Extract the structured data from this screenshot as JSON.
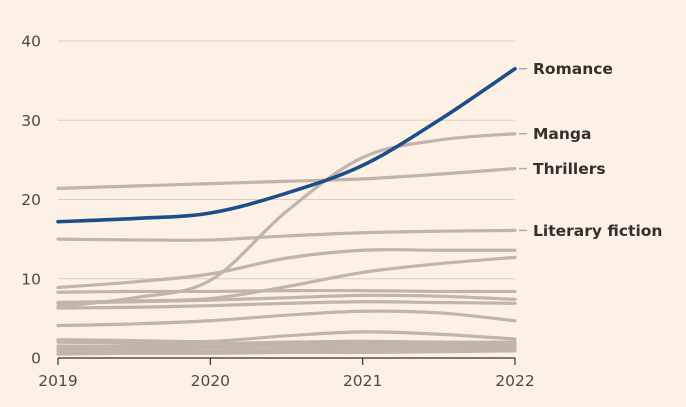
{
  "chart_data": {
    "type": "line",
    "title": "",
    "xlabel": "",
    "ylabel": "",
    "xlim": [
      2019,
      2022
    ],
    "ylim": [
      0,
      40
    ],
    "x_ticks": [
      2019,
      2020,
      2021,
      2022
    ],
    "x_tick_labels": [
      "2019",
      "2020",
      "2021",
      "2022"
    ],
    "y_ticks": [
      0,
      10,
      20,
      30,
      40
    ],
    "y_tick_labels": [
      "0",
      "10",
      "20",
      "30",
      "40"
    ],
    "grid": true,
    "x": [
      2019,
      2019.5,
      2020,
      2020.5,
      2021,
      2021.5,
      2022
    ],
    "series": [
      {
        "name": "Romance",
        "labeled": true,
        "highlight": true,
        "values": [
          17.2,
          17.6,
          18.3,
          20.8,
          24.3,
          30.0,
          36.5
        ]
      },
      {
        "name": "Manga",
        "labeled": true,
        "highlight": false,
        "values": [
          6.5,
          7.6,
          9.8,
          18.5,
          25.3,
          27.5,
          28.3
        ]
      },
      {
        "name": "Thrillers",
        "labeled": true,
        "highlight": false,
        "values": [
          21.4,
          21.7,
          22.0,
          22.3,
          22.6,
          23.2,
          23.9
        ]
      },
      {
        "name": "Literary fiction",
        "labeled": true,
        "highlight": false,
        "values": [
          15.0,
          14.9,
          14.9,
          15.4,
          15.8,
          16.0,
          16.1
        ]
      },
      {
        "name": "",
        "labeled": false,
        "highlight": false,
        "values": [
          8.9,
          9.6,
          10.6,
          12.6,
          13.6,
          13.6,
          13.6
        ]
      },
      {
        "name": "",
        "labeled": false,
        "highlight": false,
        "values": [
          7.0,
          7.2,
          7.5,
          9.0,
          10.8,
          11.9,
          12.7
        ]
      },
      {
        "name": "",
        "labeled": false,
        "highlight": false,
        "values": [
          8.3,
          8.4,
          8.4,
          8.5,
          8.5,
          8.4,
          8.4
        ]
      },
      {
        "name": "",
        "labeled": false,
        "highlight": false,
        "values": [
          6.9,
          7.1,
          7.3,
          7.6,
          7.9,
          7.8,
          7.4
        ]
      },
      {
        "name": "",
        "labeled": false,
        "highlight": false,
        "values": [
          6.3,
          6.4,
          6.6,
          6.9,
          7.1,
          7.0,
          6.9
        ]
      },
      {
        "name": "",
        "labeled": false,
        "highlight": false,
        "values": [
          4.1,
          4.3,
          4.7,
          5.4,
          5.9,
          5.7,
          4.7
        ]
      },
      {
        "name": "",
        "labeled": false,
        "highlight": false,
        "values": [
          2.3,
          2.2,
          2.1,
          2.8,
          3.3,
          3.0,
          2.4
        ]
      },
      {
        "name": "",
        "labeled": false,
        "highlight": false,
        "values": [
          2.0,
          1.9,
          1.8,
          2.0,
          2.1,
          2.0,
          2.0
        ]
      },
      {
        "name": "",
        "labeled": false,
        "highlight": false,
        "values": [
          1.5,
          1.5,
          1.6,
          1.7,
          1.8,
          1.7,
          1.8
        ]
      },
      {
        "name": "",
        "labeled": false,
        "highlight": false,
        "values": [
          1.2,
          1.2,
          1.3,
          1.4,
          1.5,
          1.5,
          1.5
        ]
      },
      {
        "name": "",
        "labeled": false,
        "highlight": false,
        "values": [
          0.8,
          0.9,
          0.9,
          1.0,
          1.1,
          1.1,
          1.2
        ]
      },
      {
        "name": "",
        "labeled": false,
        "highlight": false,
        "values": [
          0.5,
          0.6,
          0.6,
          0.7,
          0.7,
          0.8,
          0.9
        ]
      }
    ]
  }
}
